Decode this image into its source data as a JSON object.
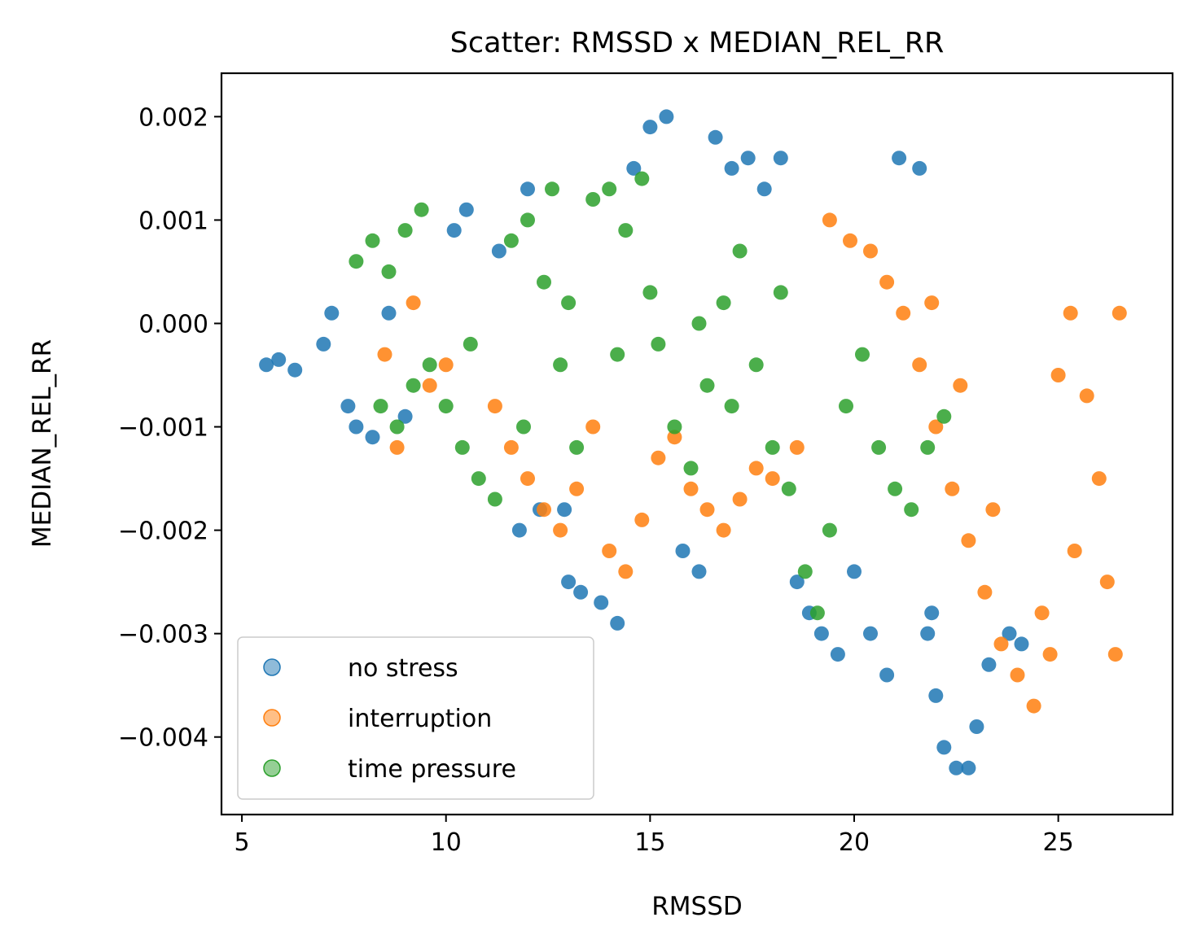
{
  "chart_data": {
    "type": "scatter",
    "title": "Scatter: RMSSD x MEDIAN_REL_RR",
    "xlabel": "RMSSD",
    "ylabel": "MEDIAN_REL_RR",
    "xlim": [
      4.5,
      27.8
    ],
    "ylim": [
      -0.00475,
      0.00242
    ],
    "xticks": [
      5,
      10,
      15,
      20,
      25
    ],
    "xtick_labels": [
      "5",
      "10",
      "15",
      "20",
      "25"
    ],
    "yticks": [
      0.002,
      0.001,
      0.0,
      -0.001,
      -0.002,
      -0.003,
      -0.004
    ],
    "ytick_labels": [
      "0.002",
      "0.001",
      "0.000",
      "−0.001",
      "−0.002",
      "−0.003",
      "−0.004"
    ],
    "grid": false,
    "legend_position": "lower-left",
    "series": [
      {
        "name": "no stress",
        "color": "#1f77b4",
        "points": [
          [
            5.6,
            -0.0004
          ],
          [
            5.9,
            -0.00035
          ],
          [
            6.3,
            -0.00045
          ],
          [
            7.0,
            -0.0002
          ],
          [
            7.2,
            0.0001
          ],
          [
            7.6,
            -0.0008
          ],
          [
            7.8,
            -0.001
          ],
          [
            8.2,
            -0.0011
          ],
          [
            8.6,
            0.0001
          ],
          [
            9.0,
            -0.0009
          ],
          [
            10.2,
            0.0009
          ],
          [
            10.5,
            0.0011
          ],
          [
            11.3,
            0.0007
          ],
          [
            11.8,
            -0.002
          ],
          [
            12.0,
            0.0013
          ],
          [
            12.3,
            -0.0018
          ],
          [
            12.9,
            -0.0018
          ],
          [
            13.0,
            -0.0025
          ],
          [
            13.3,
            -0.0026
          ],
          [
            13.8,
            -0.0027
          ],
          [
            14.2,
            -0.0029
          ],
          [
            14.6,
            0.0015
          ],
          [
            15.0,
            0.0019
          ],
          [
            15.4,
            0.002
          ],
          [
            15.8,
            -0.0022
          ],
          [
            16.2,
            -0.0024
          ],
          [
            16.6,
            0.0018
          ],
          [
            17.0,
            0.0015
          ],
          [
            17.4,
            0.0016
          ],
          [
            17.8,
            0.0013
          ],
          [
            18.2,
            0.0016
          ],
          [
            18.6,
            -0.0025
          ],
          [
            18.9,
            -0.0028
          ],
          [
            19.2,
            -0.003
          ],
          [
            19.6,
            -0.0032
          ],
          [
            20.0,
            -0.0024
          ],
          [
            20.4,
            -0.003
          ],
          [
            20.8,
            -0.0034
          ],
          [
            21.1,
            0.0016
          ],
          [
            21.6,
            0.0015
          ],
          [
            21.8,
            -0.003
          ],
          [
            22.0,
            -0.0036
          ],
          [
            22.2,
            -0.0041
          ],
          [
            22.5,
            -0.0043
          ],
          [
            22.8,
            -0.0043
          ],
          [
            23.0,
            -0.0039
          ],
          [
            23.3,
            -0.0033
          ],
          [
            23.8,
            -0.003
          ],
          [
            24.1,
            -0.0031
          ],
          [
            21.9,
            -0.0028
          ]
        ]
      },
      {
        "name": "interruption",
        "color": "#ff7f0e",
        "points": [
          [
            8.5,
            -0.0003
          ],
          [
            8.8,
            -0.0012
          ],
          [
            9.2,
            0.0002
          ],
          [
            9.6,
            -0.0006
          ],
          [
            10.0,
            -0.0004
          ],
          [
            11.2,
            -0.0008
          ],
          [
            11.6,
            -0.0012
          ],
          [
            12.0,
            -0.0015
          ],
          [
            12.4,
            -0.0018
          ],
          [
            12.8,
            -0.002
          ],
          [
            13.2,
            -0.0016
          ],
          [
            13.6,
            -0.001
          ],
          [
            14.0,
            -0.0022
          ],
          [
            14.4,
            -0.0024
          ],
          [
            14.8,
            -0.0019
          ],
          [
            15.2,
            -0.0013
          ],
          [
            15.6,
            -0.0011
          ],
          [
            16.0,
            -0.0016
          ],
          [
            16.4,
            -0.0018
          ],
          [
            16.8,
            -0.002
          ],
          [
            17.2,
            -0.0017
          ],
          [
            17.6,
            -0.0014
          ],
          [
            18.0,
            -0.0015
          ],
          [
            18.6,
            -0.0012
          ],
          [
            19.4,
            0.001
          ],
          [
            19.9,
            0.0008
          ],
          [
            20.4,
            0.0007
          ],
          [
            20.8,
            0.0004
          ],
          [
            21.2,
            0.0001
          ],
          [
            21.6,
            -0.0004
          ],
          [
            22.0,
            -0.001
          ],
          [
            22.4,
            -0.0016
          ],
          [
            22.8,
            -0.0021
          ],
          [
            23.2,
            -0.0026
          ],
          [
            23.6,
            -0.0031
          ],
          [
            24.0,
            -0.0034
          ],
          [
            24.4,
            -0.0037
          ],
          [
            24.8,
            -0.0032
          ],
          [
            25.0,
            -0.0005
          ],
          [
            25.3,
            0.0001
          ],
          [
            25.7,
            -0.0007
          ],
          [
            26.0,
            -0.0015
          ],
          [
            26.2,
            -0.0025
          ],
          [
            26.4,
            -0.0032
          ],
          [
            26.5,
            0.0001
          ],
          [
            25.4,
            -0.0022
          ],
          [
            24.6,
            -0.0028
          ],
          [
            23.4,
            -0.0018
          ],
          [
            22.6,
            -0.0006
          ],
          [
            21.9,
            0.0002
          ]
        ]
      },
      {
        "name": "time pressure",
        "color": "#2ca02c",
        "points": [
          [
            7.8,
            0.0006
          ],
          [
            8.2,
            0.0008
          ],
          [
            8.6,
            0.0005
          ],
          [
            9.0,
            0.0009
          ],
          [
            9.4,
            0.0011
          ],
          [
            8.4,
            -0.0008
          ],
          [
            8.8,
            -0.001
          ],
          [
            9.6,
            -0.0004
          ],
          [
            10.0,
            -0.0008
          ],
          [
            10.4,
            -0.0012
          ],
          [
            10.8,
            -0.0015
          ],
          [
            11.2,
            -0.0017
          ],
          [
            11.6,
            0.0008
          ],
          [
            12.0,
            0.001
          ],
          [
            12.4,
            0.0004
          ],
          [
            12.8,
            -0.0004
          ],
          [
            13.2,
            -0.0012
          ],
          [
            13.6,
            0.0012
          ],
          [
            14.0,
            0.0013
          ],
          [
            14.4,
            0.0009
          ],
          [
            14.8,
            0.0014
          ],
          [
            15.2,
            -0.0002
          ],
          [
            15.6,
            -0.001
          ],
          [
            16.0,
            -0.0014
          ],
          [
            16.4,
            -0.0006
          ],
          [
            16.8,
            0.0002
          ],
          [
            17.2,
            0.0007
          ],
          [
            17.6,
            -0.0004
          ],
          [
            18.0,
            -0.0012
          ],
          [
            18.4,
            -0.0016
          ],
          [
            18.8,
            -0.0024
          ],
          [
            19.1,
            -0.0028
          ],
          [
            19.4,
            -0.002
          ],
          [
            19.8,
            -0.0008
          ],
          [
            20.2,
            -0.0003
          ],
          [
            20.6,
            -0.0012
          ],
          [
            21.0,
            -0.0016
          ],
          [
            21.4,
            -0.0018
          ],
          [
            21.8,
            -0.0012
          ],
          [
            22.2,
            -0.0009
          ],
          [
            14.2,
            -0.0003
          ],
          [
            15.0,
            0.0003
          ],
          [
            16.2,
            0.0
          ],
          [
            17.0,
            -0.0008
          ],
          [
            18.2,
            0.0003
          ],
          [
            13.0,
            0.0002
          ],
          [
            11.9,
            -0.001
          ],
          [
            10.6,
            -0.0002
          ],
          [
            9.2,
            -0.0006
          ],
          [
            12.6,
            0.0013
          ]
        ]
      }
    ]
  }
}
